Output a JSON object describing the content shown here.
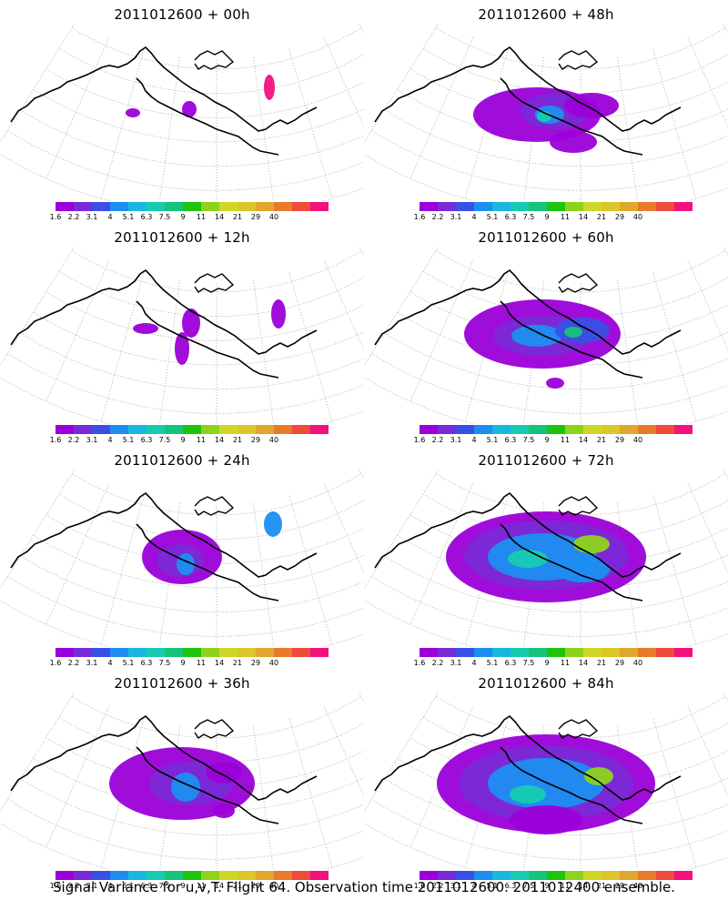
{
  "panels": [
    {
      "title": "2011012600 + 00h"
    },
    {
      "title": "2011012600 + 48h"
    },
    {
      "title": "2011012600 + 12h"
    },
    {
      "title": "2011012600 + 60h"
    },
    {
      "title": "2011012600 + 24h"
    },
    {
      "title": "2011012600 + 72h"
    },
    {
      "title": "2011012600 + 36h"
    },
    {
      "title": "2011012600 + 84h"
    }
  ],
  "colorbar": {
    "colors": [
      "#9b00d8",
      "#7a2ad6",
      "#3a4fe6",
      "#1c8ef0",
      "#19b7e0",
      "#17cbb0",
      "#16c37a",
      "#1ec30c",
      "#8fd21c",
      "#cfd726",
      "#dbc62b",
      "#dfa72c",
      "#e87a2c",
      "#ee4b3a",
      "#f2117e"
    ],
    "labels": [
      "1.6",
      "2.2",
      "3.1",
      "4",
      "5.1",
      "6.3",
      "7.5",
      "9",
      "11",
      "14",
      "21",
      "29",
      "40"
    ]
  },
  "caption": "Signal Variance for u,v,T. Flight 64. Observation time 2011012600. 2011012400 ensemble."
}
